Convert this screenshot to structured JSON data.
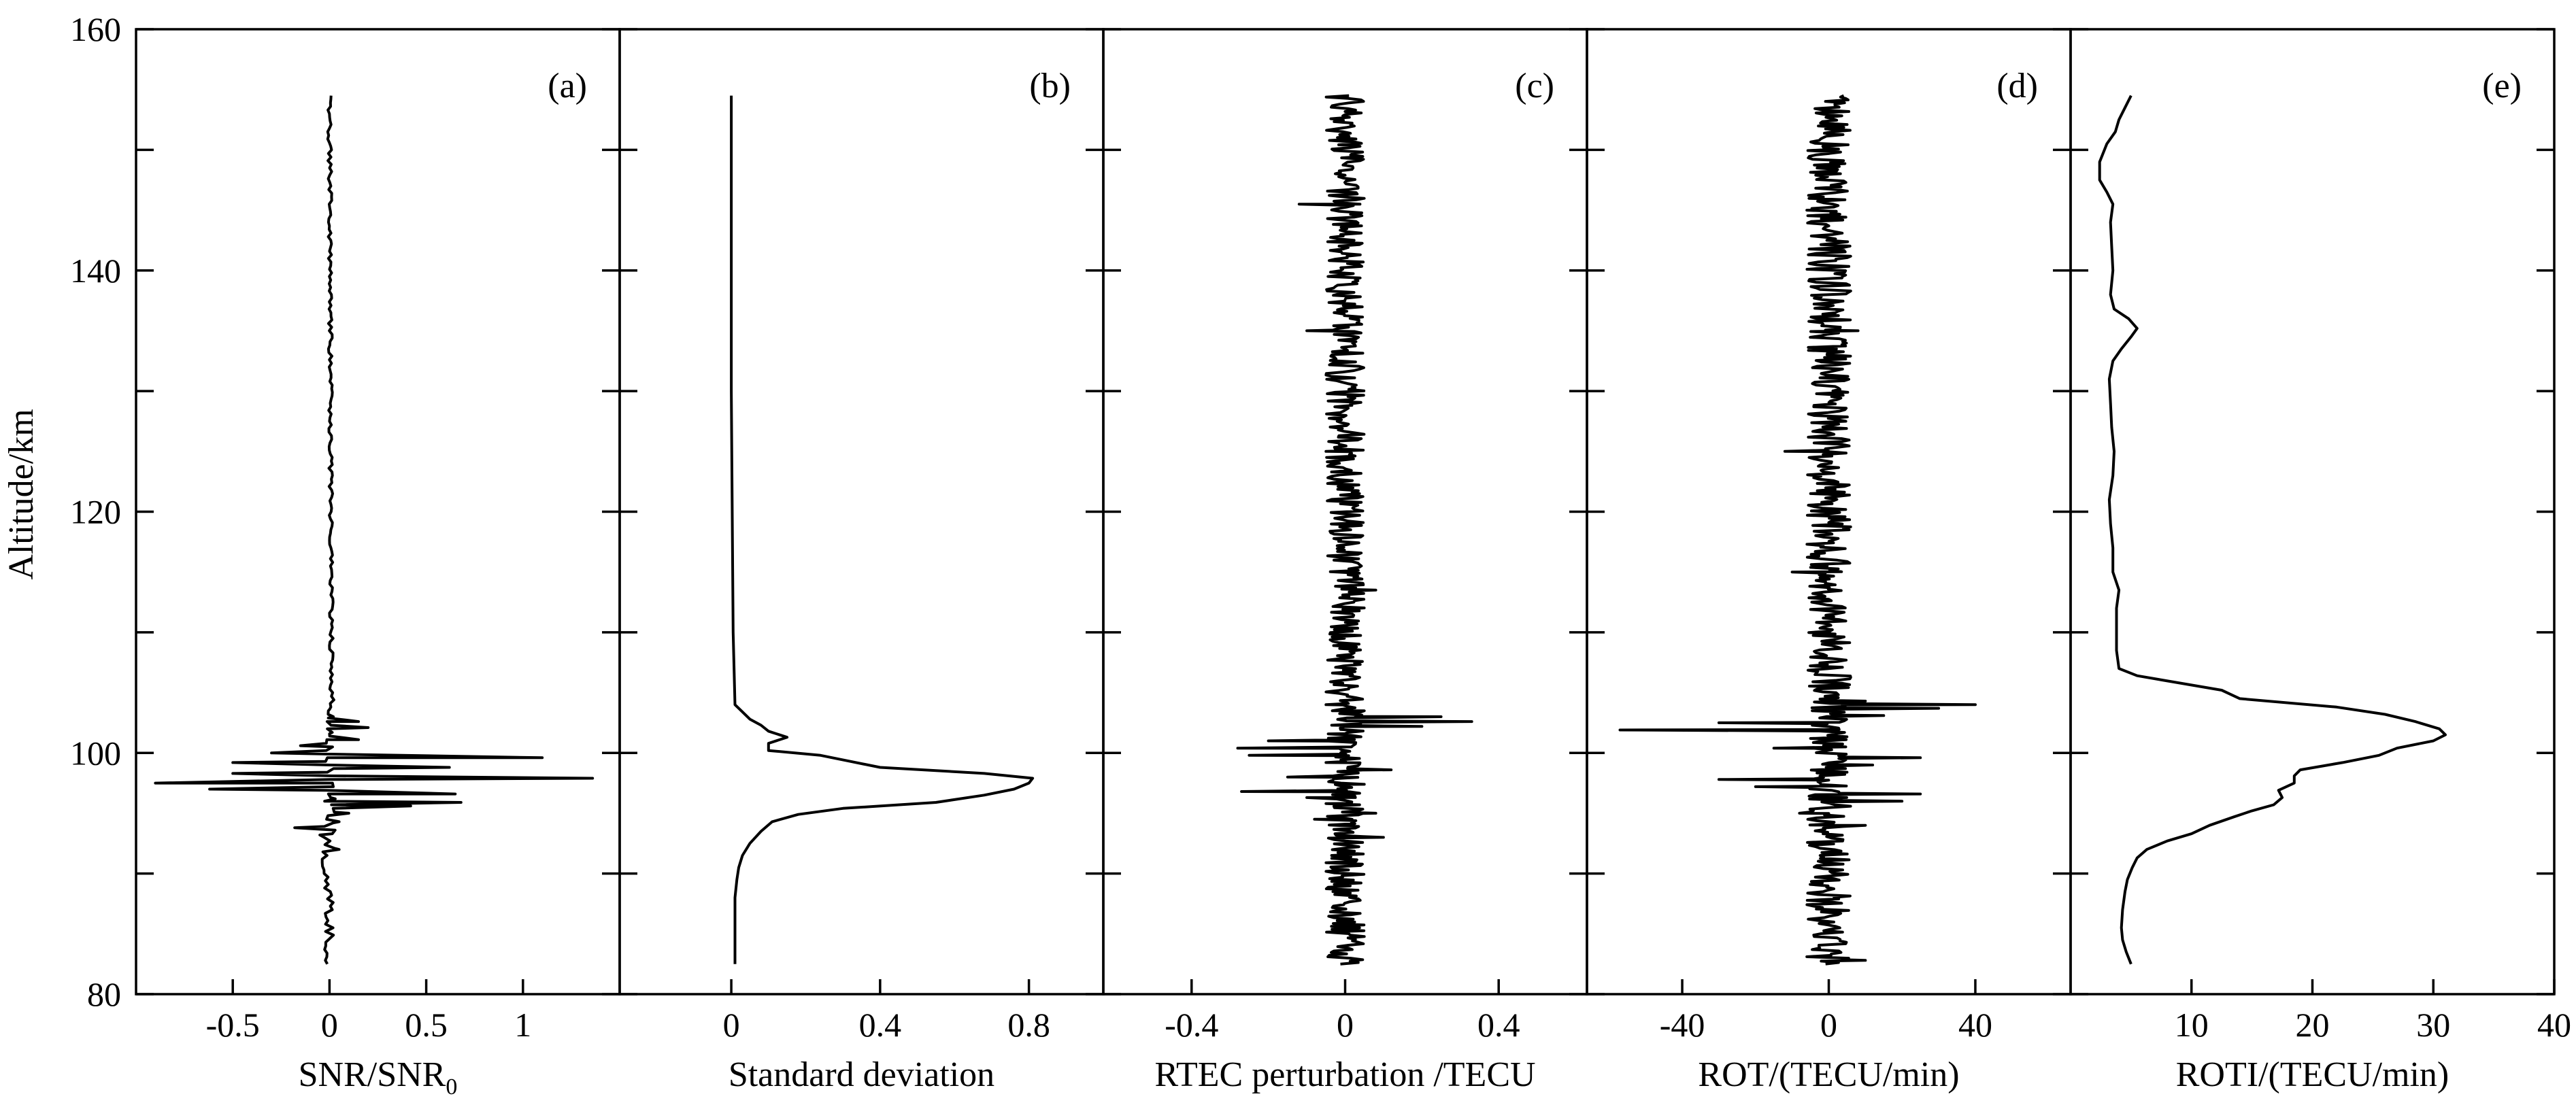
{
  "y_axis": {
    "label": "Altitude/km",
    "range": [
      80,
      160
    ],
    "ticks": [
      80,
      100,
      120,
      140,
      160
    ]
  },
  "chart_data": [
    {
      "type": "line",
      "panel": "(a)",
      "xlabel": "SNR/SNR",
      "xlabel_sub": "0",
      "xlim": [
        -1.0,
        1.5
      ],
      "xticks": [
        -0.5,
        0,
        0.5,
        1
      ],
      "xtick_labels": [
        "-0.5",
        "0",
        "0.5",
        "1"
      ],
      "profile": {
        "kind": "noise",
        "y_range": [
          82.5,
          154.5
        ],
        "baseline": [
          [
            82.5,
            0
          ],
          [
            104,
            0
          ],
          [
            104.5,
            0.02
          ],
          [
            105,
            0.01
          ],
          [
            154.5,
            0
          ]
        ],
        "noise_amp": [
          [
            82.5,
            0.025
          ],
          [
            92,
            0.04
          ],
          [
            104,
            0.01
          ],
          [
            154.5,
            0.01
          ]
        ],
        "step": 0.3,
        "anchors": [
          [
            92.0,
            0.05
          ],
          [
            93.2,
            -0.05
          ],
          [
            93.8,
            -0.18
          ],
          [
            94.3,
            0.05
          ],
          [
            95.0,
            0.1
          ],
          [
            95.6,
            0.42
          ],
          [
            95.9,
            0.68
          ],
          [
            96.2,
            0.03
          ],
          [
            96.6,
            0.65
          ],
          [
            97.0,
            -0.62
          ],
          [
            97.5,
            -0.9
          ],
          [
            97.9,
            1.36
          ],
          [
            98.3,
            -0.5
          ],
          [
            98.8,
            0.62
          ],
          [
            99.2,
            -0.5
          ],
          [
            99.6,
            1.1
          ],
          [
            100.0,
            -0.3
          ],
          [
            100.6,
            -0.15
          ],
          [
            101.1,
            0.15
          ],
          [
            101.6,
            0.0
          ],
          [
            102.1,
            0.2
          ],
          [
            102.6,
            0.15
          ],
          [
            103.0,
            0.02
          ],
          [
            103.6,
            0.0
          ]
        ]
      }
    },
    {
      "type": "line",
      "panel": "(b)",
      "xlabel": "Standard deviation",
      "xlim": [
        -0.3,
        1.0
      ],
      "xticks": [
        0,
        0.4,
        0.8
      ],
      "xtick_labels": [
        "0",
        "0.4",
        "0.8"
      ],
      "profile": {
        "kind": "smooth",
        "points": [
          [
            82.5,
            0.01
          ],
          [
            85,
            0.01
          ],
          [
            88,
            0.01
          ],
          [
            89.5,
            0.015
          ],
          [
            90.5,
            0.02
          ],
          [
            91.5,
            0.03
          ],
          [
            92.5,
            0.05
          ],
          [
            93.5,
            0.08
          ],
          [
            94.3,
            0.11
          ],
          [
            94.9,
            0.18
          ],
          [
            95.4,
            0.3
          ],
          [
            95.9,
            0.55
          ],
          [
            96.5,
            0.68
          ],
          [
            97.0,
            0.76
          ],
          [
            97.5,
            0.8
          ],
          [
            97.9,
            0.81
          ],
          [
            98.3,
            0.68
          ],
          [
            98.8,
            0.4
          ],
          [
            99.3,
            0.32
          ],
          [
            99.8,
            0.24
          ],
          [
            100.2,
            0.1
          ],
          [
            100.8,
            0.1
          ],
          [
            101.3,
            0.15
          ],
          [
            101.8,
            0.1
          ],
          [
            102.3,
            0.08
          ],
          [
            102.8,
            0.05
          ],
          [
            103.4,
            0.03
          ],
          [
            104.0,
            0.01
          ],
          [
            110,
            0.005
          ],
          [
            130,
            0.0
          ],
          [
            154.5,
            0.0
          ]
        ]
      }
    },
    {
      "type": "line",
      "panel": "(c)",
      "xlabel": "RTEC perturbation /TECU",
      "xlim": [
        -0.63,
        0.63
      ],
      "xticks": [
        -0.4,
        0,
        0.4
      ],
      "xtick_labels": [
        "-0.4",
        "0",
        "0.4"
      ],
      "profile": {
        "kind": "noise",
        "y_range": [
          82.5,
          154.5
        ],
        "baseline": [
          [
            82.5,
            0
          ],
          [
            154.5,
            0
          ]
        ],
        "noise_amp": [
          [
            82.5,
            0.05
          ],
          [
            154.5,
            0.05
          ]
        ],
        "step": 0.12,
        "anchors": [
          [
            93.0,
            0.1
          ],
          [
            94.5,
            -0.08
          ],
          [
            95.0,
            0.08
          ],
          [
            95.8,
            -0.05
          ],
          [
            96.3,
            -0.1
          ],
          [
            96.8,
            -0.27
          ],
          [
            97.4,
            0.05
          ],
          [
            98.0,
            -0.15
          ],
          [
            98.6,
            0.12
          ],
          [
            99.2,
            -0.05
          ],
          [
            99.8,
            -0.25
          ],
          [
            100.4,
            -0.28
          ],
          [
            101.0,
            -0.2
          ],
          [
            101.6,
            0.0
          ],
          [
            102.2,
            0.2
          ],
          [
            102.6,
            0.33
          ],
          [
            103.0,
            0.25
          ],
          [
            103.5,
            0.05
          ],
          [
            104.0,
            -0.05
          ],
          [
            104.4,
            0.02
          ],
          [
            113.5,
            0.08
          ],
          [
            125.0,
            -0.05
          ],
          [
            135.0,
            -0.1
          ],
          [
            145.5,
            -0.12
          ]
        ]
      }
    },
    {
      "type": "line",
      "panel": "(d)",
      "xlabel": "ROT/(TECU/min)",
      "xlim": [
        -66,
        66
      ],
      "xticks": [
        -40,
        0,
        40
      ],
      "xtick_labels": [
        "-40",
        "0",
        "40"
      ],
      "profile": {
        "kind": "noise",
        "y_range": [
          82.5,
          154.5
        ],
        "baseline": [
          [
            82.5,
            0
          ],
          [
            154.5,
            0
          ]
        ],
        "noise_amp": [
          [
            82.5,
            6
          ],
          [
            154.5,
            6
          ]
        ],
        "step": 0.12,
        "anchors": [
          [
            82.8,
            10
          ],
          [
            94.0,
            10
          ],
          [
            95.0,
            -8
          ],
          [
            96.0,
            20
          ],
          [
            96.6,
            25
          ],
          [
            97.2,
            -20
          ],
          [
            97.8,
            -30
          ],
          [
            98.4,
            5
          ],
          [
            99.0,
            12
          ],
          [
            99.6,
            25
          ],
          [
            100.4,
            -15
          ],
          [
            101.2,
            -5
          ],
          [
            101.9,
            -57
          ],
          [
            102.5,
            -30
          ],
          [
            103.1,
            15
          ],
          [
            103.7,
            30
          ],
          [
            104.0,
            40
          ],
          [
            104.3,
            10
          ],
          [
            105.0,
            2
          ],
          [
            115.0,
            -10
          ],
          [
            125.0,
            -12
          ],
          [
            135.0,
            8
          ],
          [
            145.0,
            -6
          ]
        ]
      }
    },
    {
      "type": "line",
      "panel": "(e)",
      "xlabel": "ROTI/(TECU/min)",
      "xlim": [
        0,
        40
      ],
      "xticks": [
        10,
        20,
        30,
        40
      ],
      "xtick_labels": [
        "10",
        "20",
        "30",
        "40"
      ],
      "profile": {
        "kind": "smooth",
        "points": [
          [
            82.5,
            5.0
          ],
          [
            83.5,
            4.6
          ],
          [
            84.5,
            4.3
          ],
          [
            85.5,
            4.2
          ],
          [
            87,
            4.3
          ],
          [
            88.5,
            4.5
          ],
          [
            89.5,
            4.7
          ],
          [
            90.5,
            5.1
          ],
          [
            91.3,
            5.5
          ],
          [
            92.0,
            6.3
          ],
          [
            92.7,
            8.0
          ],
          [
            93.3,
            10.0
          ],
          [
            94.0,
            11.5
          ],
          [
            94.7,
            13.5
          ],
          [
            95.2,
            15.0
          ],
          [
            95.7,
            16.8
          ],
          [
            96.3,
            17.5
          ],
          [
            96.9,
            17.2
          ],
          [
            97.5,
            18.5
          ],
          [
            98.1,
            18.5
          ],
          [
            98.6,
            19.0
          ],
          [
            99.2,
            22.5
          ],
          [
            99.8,
            25.5
          ],
          [
            100.4,
            27.0
          ],
          [
            101.0,
            30.0
          ],
          [
            101.5,
            31.0
          ],
          [
            102.0,
            30.5
          ],
          [
            102.6,
            28.5
          ],
          [
            103.2,
            26.0
          ],
          [
            103.8,
            22.0
          ],
          [
            104.5,
            14.0
          ],
          [
            105.2,
            12.5
          ],
          [
            105.8,
            9.0
          ],
          [
            106.4,
            5.5
          ],
          [
            107.0,
            4.0
          ],
          [
            108.5,
            3.8
          ],
          [
            110,
            3.8
          ],
          [
            112,
            3.8
          ],
          [
            113.5,
            4.0
          ],
          [
            115,
            3.5
          ],
          [
            117,
            3.5
          ],
          [
            119,
            3.3
          ],
          [
            121,
            3.2
          ],
          [
            123,
            3.5
          ],
          [
            125,
            3.6
          ],
          [
            127,
            3.4
          ],
          [
            129,
            3.3
          ],
          [
            131,
            3.2
          ],
          [
            132.5,
            3.5
          ],
          [
            133.5,
            4.2
          ],
          [
            134.5,
            5.0
          ],
          [
            135.2,
            5.5
          ],
          [
            136.0,
            4.8
          ],
          [
            136.8,
            3.6
          ],
          [
            138,
            3.3
          ],
          [
            140,
            3.5
          ],
          [
            142,
            3.4
          ],
          [
            144,
            3.3
          ],
          [
            145.5,
            3.5
          ],
          [
            146.5,
            3.0
          ],
          [
            147.5,
            2.4
          ],
          [
            149,
            2.4
          ],
          [
            150.5,
            3.0
          ],
          [
            151.5,
            3.7
          ],
          [
            152.5,
            4.0
          ],
          [
            153.5,
            4.5
          ],
          [
            154.5,
            5.0
          ]
        ]
      }
    }
  ]
}
